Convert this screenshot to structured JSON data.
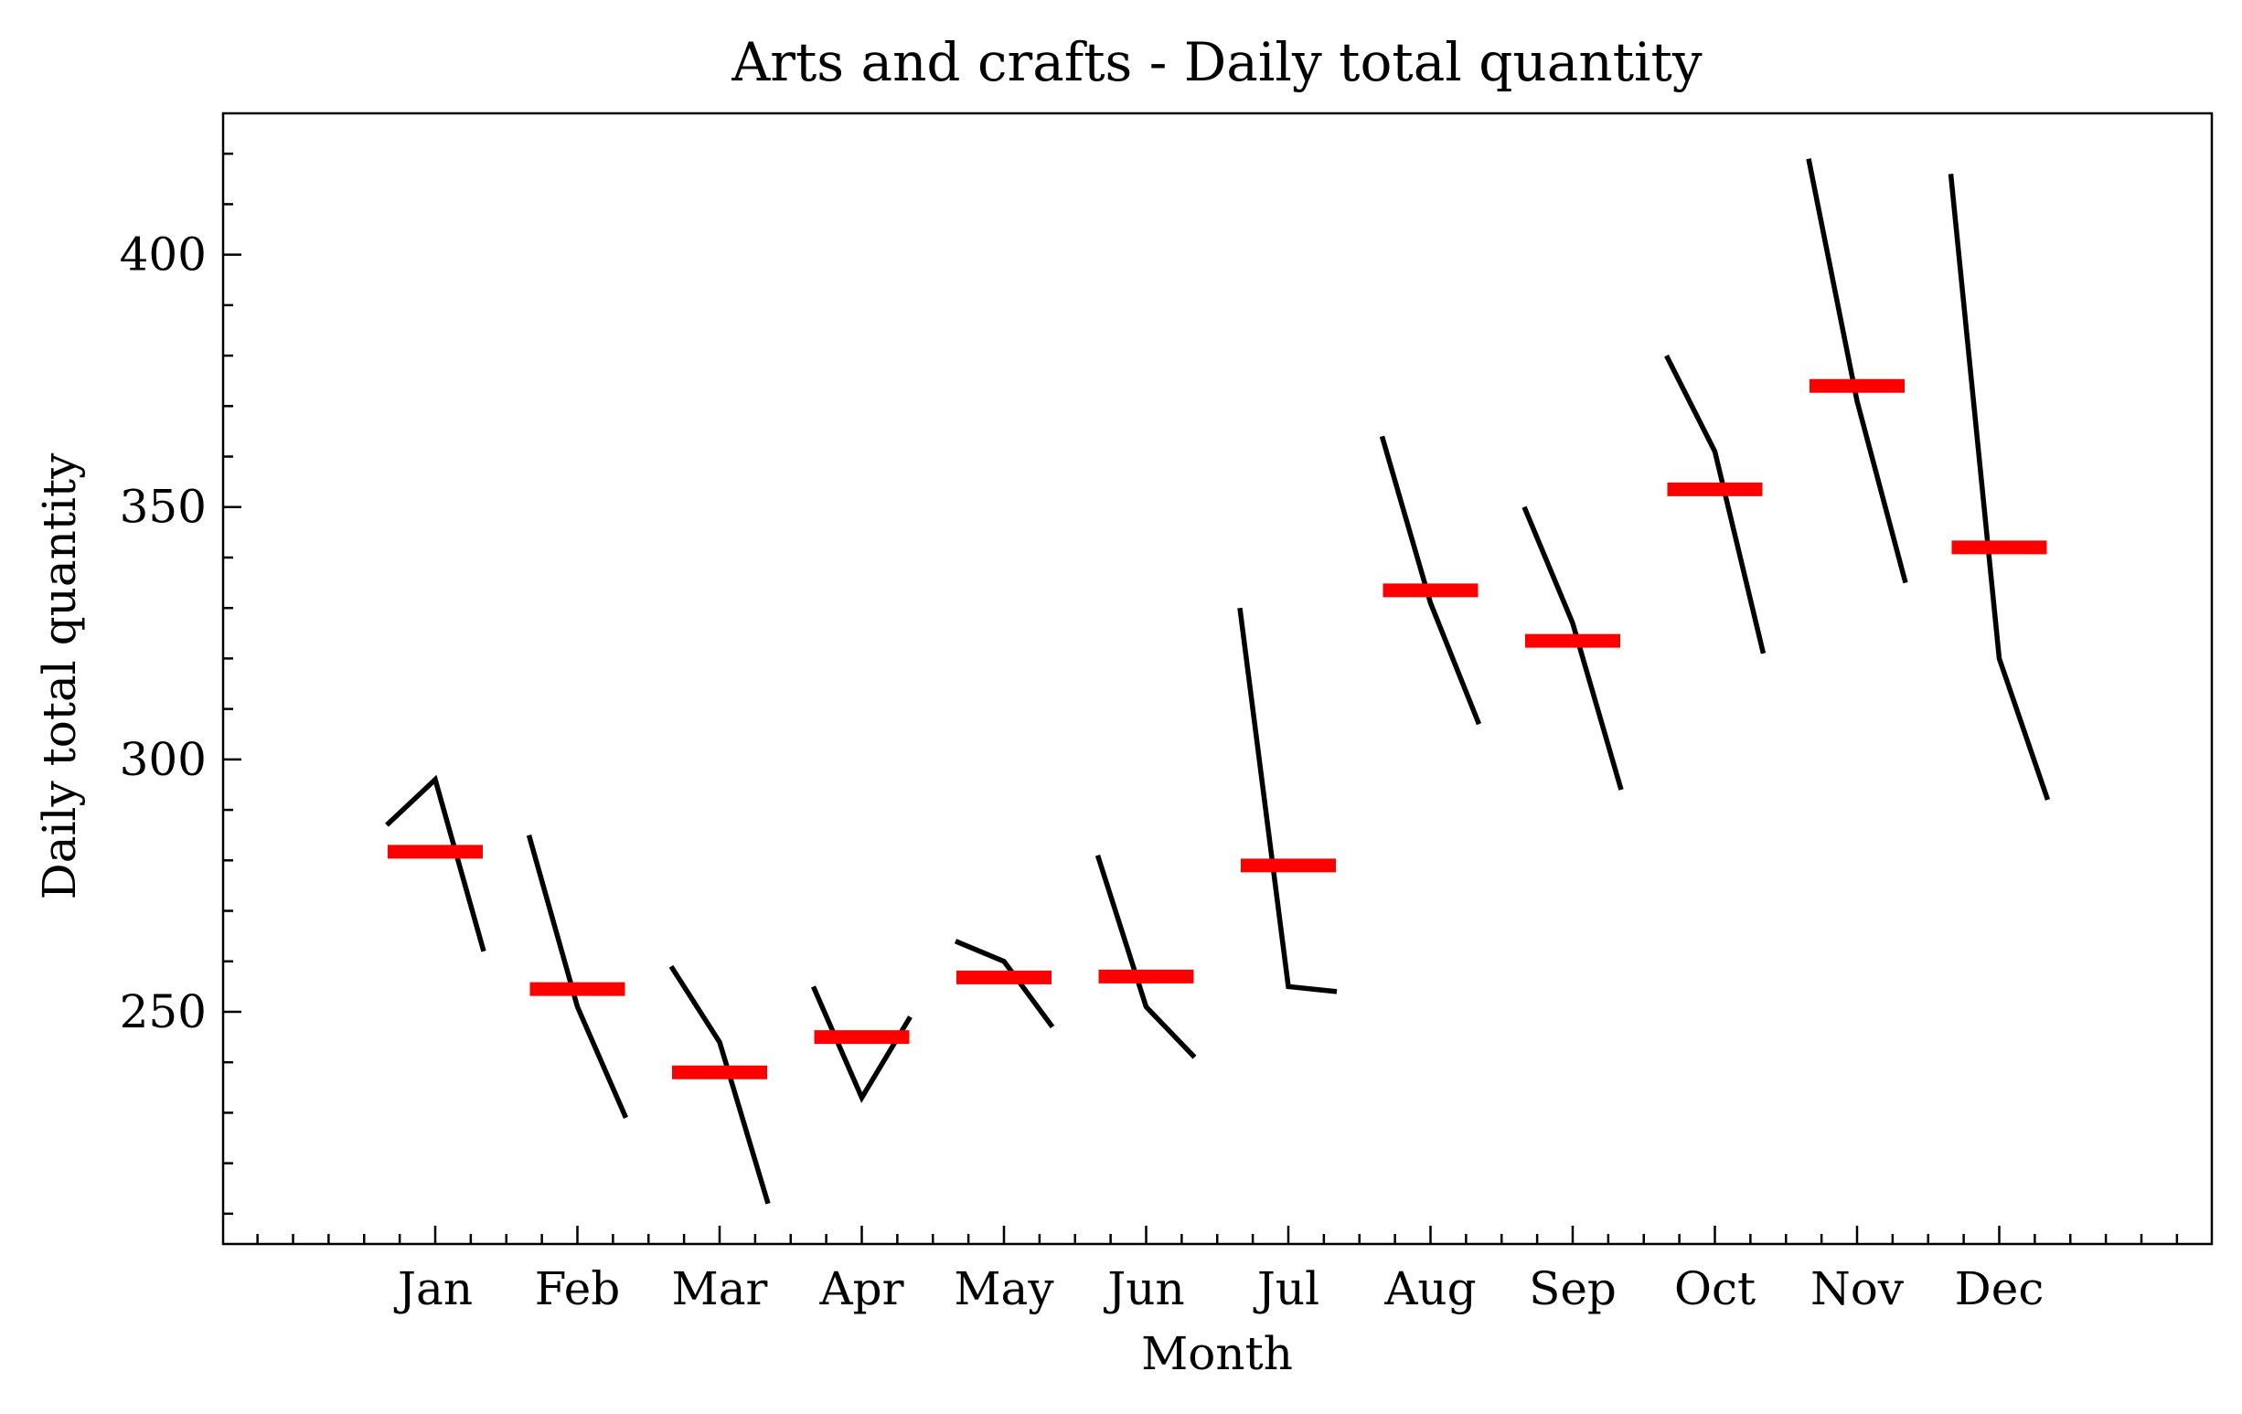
{
  "chart_data": {
    "type": "line",
    "title": "Arts and crafts - Daily total quantity",
    "xlabel": "Month",
    "ylabel": "Daily total quantity",
    "categories": [
      "Jan",
      "Feb",
      "Mar",
      "Apr",
      "May",
      "Jun",
      "Jul",
      "Aug",
      "Sep",
      "Oct",
      "Nov",
      "Dec"
    ],
    "ylim": [
      204,
      428
    ],
    "yticks": [
      250,
      300,
      350,
      400
    ],
    "grid": false,
    "series_color": "#000000",
    "mean_color": "#ff0000",
    "subseries": [
      {
        "month": "Jan",
        "values": [
          287,
          296,
          262
        ],
        "mean": 281.7
      },
      {
        "month": "Feb",
        "values": [
          285,
          251,
          229
        ],
        "mean": 254.5
      },
      {
        "month": "Mar",
        "values": [
          259,
          244,
          212
        ],
        "mean": 238.0
      },
      {
        "month": "Apr",
        "values": [
          255,
          233,
          249
        ],
        "mean": 245.0
      },
      {
        "month": "May",
        "values": [
          264,
          260,
          247
        ],
        "mean": 256.8
      },
      {
        "month": "Jun",
        "values": [
          281,
          251,
          241
        ],
        "mean": 257.0
      },
      {
        "month": "Jul",
        "values": [
          330,
          255,
          254
        ],
        "mean": 279.0
      },
      {
        "month": "Aug",
        "values": [
          364,
          331,
          307
        ],
        "mean": 333.5
      },
      {
        "month": "Sep",
        "values": [
          350,
          327,
          294
        ],
        "mean": 323.5
      },
      {
        "month": "Oct",
        "values": [
          380,
          361,
          321
        ],
        "mean": 353.5
      },
      {
        "month": "Nov",
        "values": [
          419,
          371,
          335
        ],
        "mean": 374.0
      },
      {
        "month": "Dec",
        "values": [
          416,
          320,
          292
        ],
        "mean": 342.0
      }
    ]
  }
}
